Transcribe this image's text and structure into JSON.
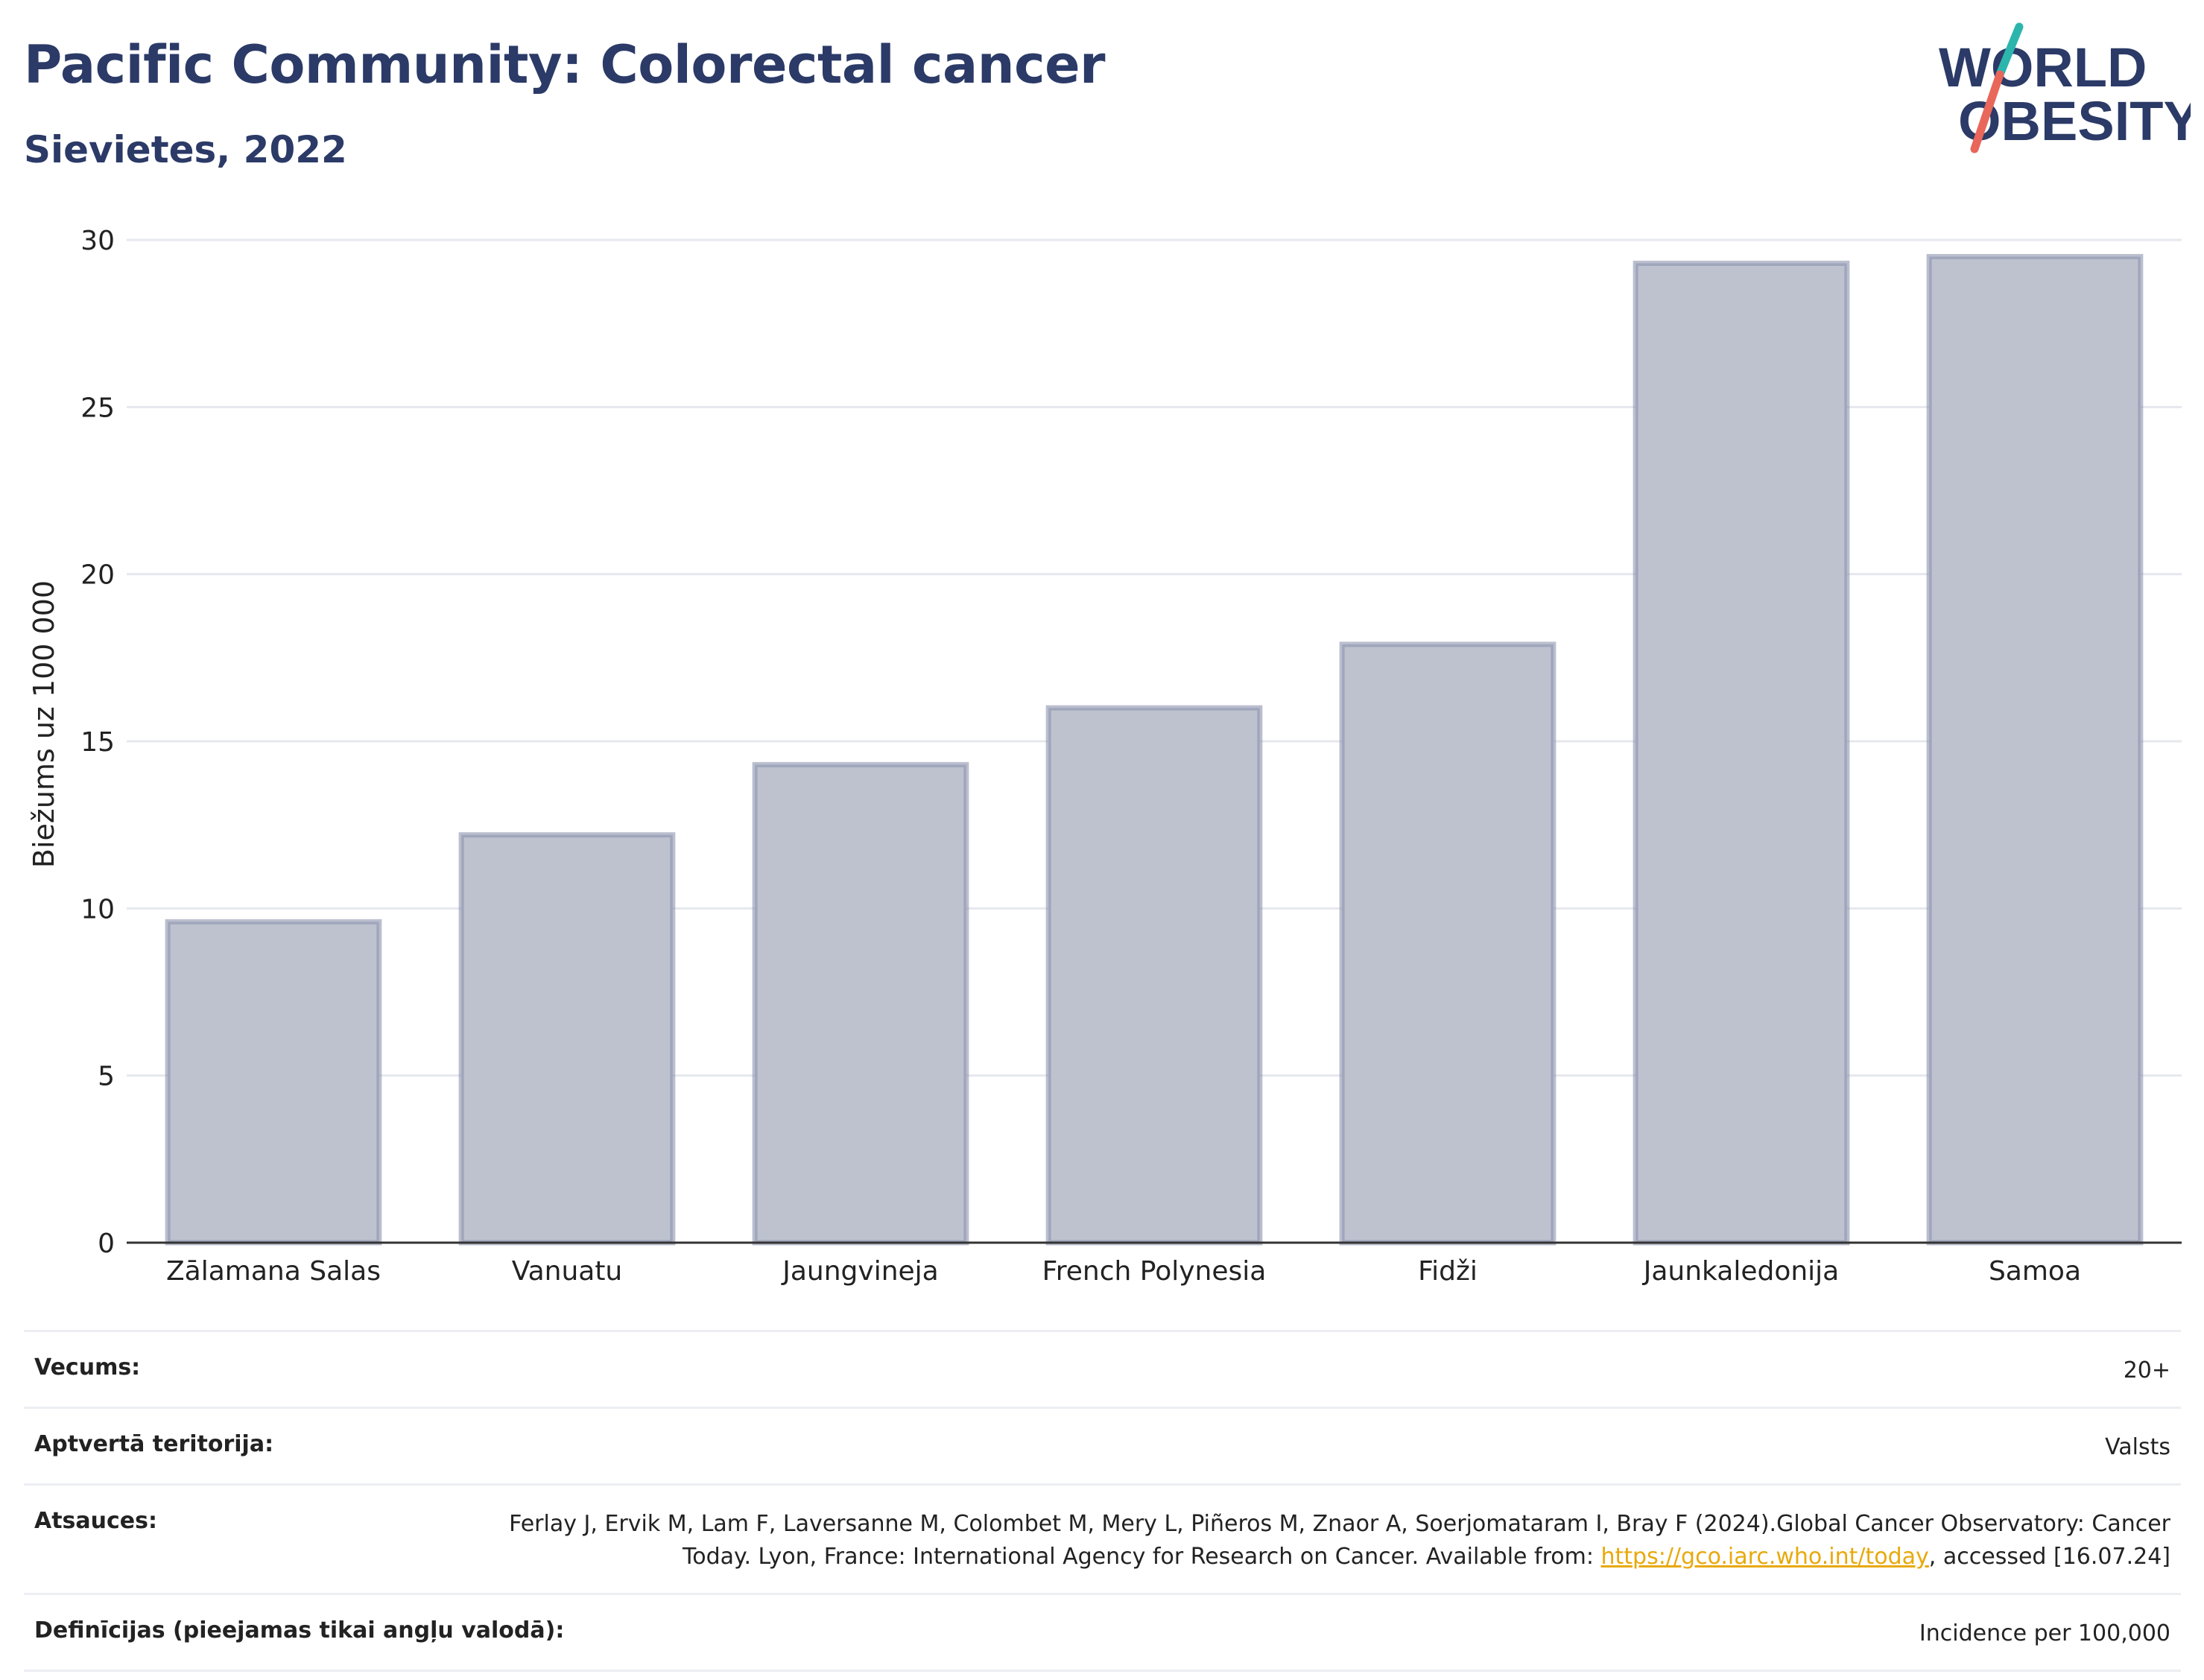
{
  "header": {
    "title": "Pacific Community: Colorectal cancer",
    "subtitle": "Sievietes, 2022"
  },
  "logo": {
    "line1": "WORLD",
    "line2": "OBESITY",
    "accent_teal": "#2cb5ad",
    "accent_red": "#e8675a"
  },
  "colors": {
    "bar_fill": "#bec2cf",
    "bar_stroke": "#8c93ad",
    "grid": "#e6e8ee",
    "title": "#2b3a67",
    "link": "#e8a90c"
  },
  "chart_data": {
    "type": "bar",
    "categories": [
      "Zālamana Salas",
      "Vanuatu",
      "Jaungvineja",
      "French Polynesia",
      "Fidži",
      "Jaunkaledonija",
      "Samoa"
    ],
    "values": [
      9.6,
      12.2,
      14.3,
      16.0,
      17.9,
      29.3,
      29.5
    ],
    "ylabel": "Biežums uz 100 000",
    "ylim": [
      0,
      30
    ],
    "yticks": [
      0,
      5,
      10,
      15,
      20,
      25,
      30
    ],
    "grid": true
  },
  "info": {
    "rows": [
      {
        "label": "Vecums:",
        "value": "20+"
      },
      {
        "label": "Aptvertā teritorija:",
        "value": "Valsts"
      }
    ],
    "references": {
      "label": "Atsauces:",
      "text_before": "Ferlay J, Ervik M, Lam F, Laversanne M, Colombet M, Mery L, Piñeros M, Znaor A, Soerjomataram I, Bray F (2024).Global Cancer Observatory: Cancer Today. Lyon, France: International Agency for Research on Cancer. Available from: ",
      "link": "https://gco.iarc.who.int/today",
      "text_after": ", accessed [16.07.24]"
    },
    "definitions": {
      "label": "Definīcijas (pieejamas tikai angļu valodā):",
      "value": "Incidence per 100,000"
    }
  }
}
